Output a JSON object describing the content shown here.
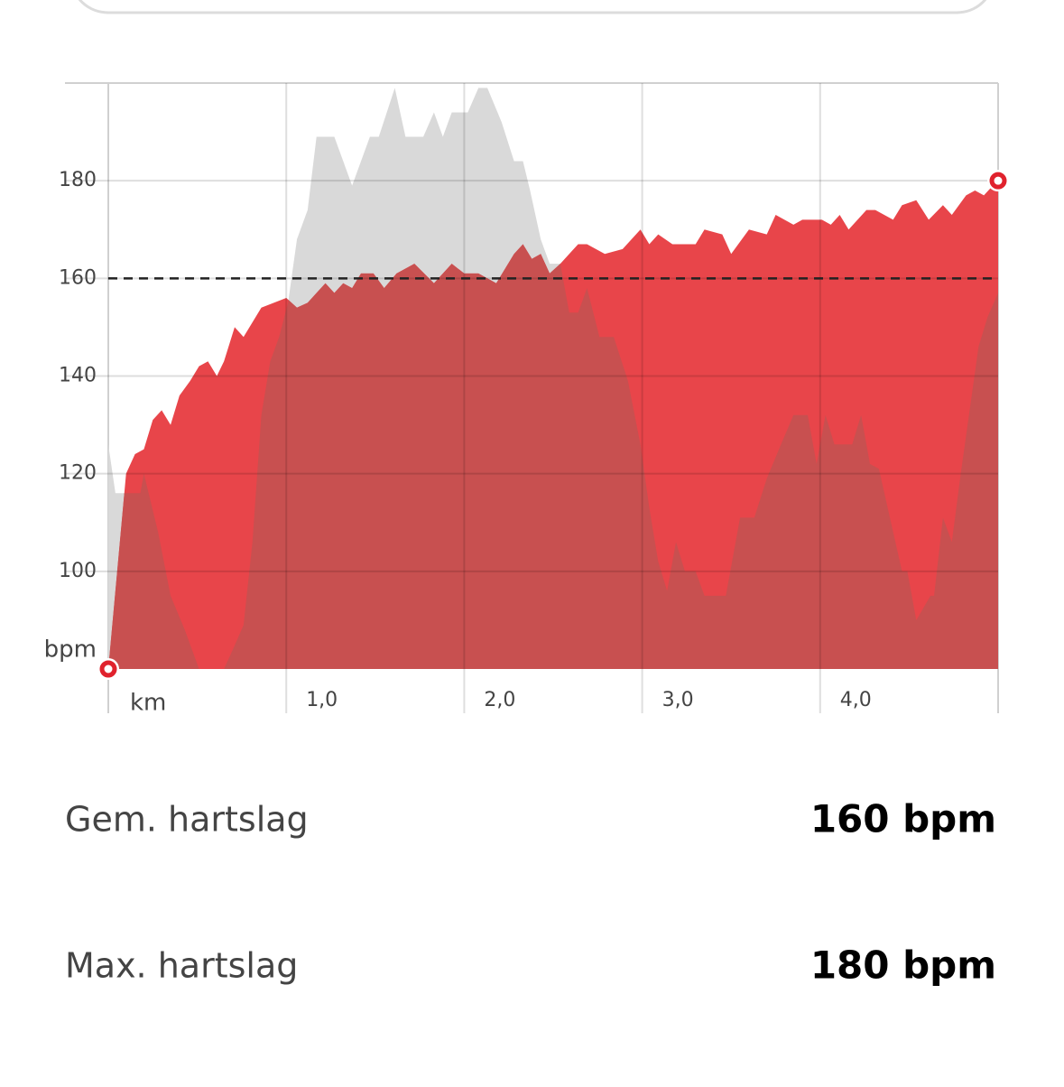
{
  "chart_data": {
    "type": "area",
    "x_label": "km",
    "y_label": "bpm",
    "xlim": [
      0,
      5
    ],
    "ylim": [
      80,
      200
    ],
    "xticks": [
      {
        "value": 1,
        "label": "1,0"
      },
      {
        "value": 2,
        "label": "2,0"
      },
      {
        "value": 3,
        "label": "3,0"
      },
      {
        "value": 4,
        "label": "4,0"
      }
    ],
    "yticks": [
      100,
      120,
      140,
      160,
      180
    ],
    "grid": true,
    "reference_line": 160,
    "overlap_color": "#c85050",
    "series": [
      {
        "color": "#d9d9d9",
        "x": [
          0.0,
          0.04,
          0.1,
          0.18,
          0.2,
          0.28,
          0.35,
          0.43,
          0.51,
          0.65,
          0.7,
          0.76,
          0.81,
          0.86,
          0.91,
          0.96,
          1.01,
          1.06,
          1.12,
          1.17,
          1.27,
          1.37,
          1.47,
          1.52,
          1.61,
          1.67,
          1.77,
          1.83,
          1.88,
          1.93,
          2.02,
          2.08,
          2.13,
          2.21,
          2.28,
          2.33,
          2.37,
          2.43,
          2.48,
          2.54,
          2.59,
          2.64,
          2.69,
          2.76,
          2.84,
          2.92,
          2.99,
          3.04,
          3.09,
          3.14,
          3.19,
          3.24,
          3.3,
          3.35,
          3.47,
          3.55,
          3.63,
          3.7,
          3.78,
          3.85,
          3.93,
          3.98,
          4.03,
          4.08,
          4.18,
          4.23,
          4.28,
          4.33,
          4.46,
          4.49,
          4.54,
          4.62,
          4.64,
          4.69,
          4.74,
          4.79,
          4.84,
          4.89,
          4.94,
          5.0
        ],
        "values": [
          126,
          116,
          116,
          116,
          120,
          108,
          95,
          88,
          80,
          80,
          84,
          89,
          106,
          132,
          143,
          148,
          155,
          168,
          174,
          189,
          189,
          179,
          189,
          189,
          199,
          189,
          189,
          194,
          189,
          194,
          194,
          199,
          199,
          192,
          184,
          184,
          178,
          168,
          163,
          163,
          153,
          153,
          158,
          148,
          148,
          139,
          126,
          113,
          102,
          96,
          106,
          100,
          100,
          95,
          95,
          111,
          111,
          119,
          126,
          132,
          132,
          122,
          132,
          126,
          126,
          132,
          122,
          121,
          100,
          100,
          90,
          95,
          95,
          111,
          106,
          120,
          133,
          146,
          152,
          157
        ]
      },
      {
        "color": "#e8454a",
        "x": [
          0.0,
          0.1,
          0.15,
          0.2,
          0.25,
          0.3,
          0.35,
          0.4,
          0.46,
          0.51,
          0.56,
          0.61,
          0.65,
          0.71,
          0.76,
          0.86,
          1.0,
          1.06,
          1.12,
          1.17,
          1.22,
          1.27,
          1.32,
          1.37,
          1.42,
          1.49,
          1.55,
          1.62,
          1.72,
          1.83,
          1.93,
          2.0,
          2.08,
          2.18,
          2.28,
          2.33,
          2.38,
          2.43,
          2.48,
          2.54,
          2.64,
          2.69,
          2.79,
          2.89,
          2.99,
          3.04,
          3.09,
          3.17,
          3.3,
          3.35,
          3.45,
          3.5,
          3.6,
          3.7,
          3.75,
          3.85,
          3.9,
          4.01,
          4.06,
          4.11,
          4.16,
          4.26,
          4.31,
          4.41,
          4.46,
          4.54,
          4.61,
          4.69,
          4.74,
          4.82,
          4.87,
          4.92,
          4.97,
          5.0
        ],
        "values": [
          80,
          120,
          124,
          125,
          131,
          133,
          130,
          136,
          139,
          142,
          143,
          140,
          143,
          150,
          148,
          154,
          156,
          154,
          155,
          157,
          159,
          157,
          159,
          158,
          161,
          161,
          158,
          161,
          163,
          159,
          163,
          161,
          161,
          159,
          165,
          167,
          164,
          165,
          161,
          163,
          167,
          167,
          165,
          166,
          170,
          167,
          169,
          167,
          167,
          170,
          169,
          165,
          170,
          169,
          173,
          171,
          172,
          172,
          171,
          173,
          170,
          174,
          174,
          172,
          175,
          176,
          172,
          175,
          173,
          177,
          178,
          177,
          179,
          180
        ]
      }
    ]
  },
  "stats": [
    {
      "label": "Gem. hartslag",
      "value": "160 bpm"
    },
    {
      "label": "Max. hartslag",
      "value": "180 bpm"
    }
  ]
}
